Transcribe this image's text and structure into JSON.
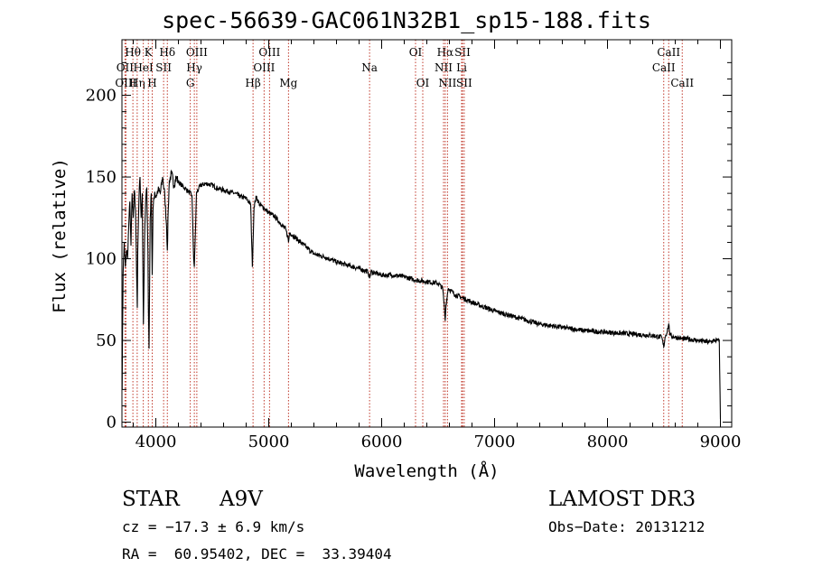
{
  "title": "spec-56639-GAC061N32B1_sp15-188.fits",
  "info": {
    "object_class": "STAR",
    "subclass": "A9V",
    "survey": "LAMOST DR3",
    "cz": "cz = −17.3 ± 6.9 km/s",
    "obs_date": "Obs−Date: 20131212",
    "coords": "RA =  60.95402, DEC =  33.39404"
  },
  "colors": {
    "line_marker": "#c0392b",
    "spectrum": "#000000",
    "axes": "#000000"
  },
  "chart_data": {
    "type": "line",
    "title": "spec-56639-GAC061N32B1_sp15-188.fits",
    "xlabel": "Wavelength (Å)",
    "ylabel": "Flux (relative)",
    "xlim": [
      3700,
      9100
    ],
    "ylim": [
      -3,
      234
    ],
    "xticks": [
      4000,
      5000,
      6000,
      7000,
      8000,
      9000
    ],
    "yticks": [
      0,
      50,
      100,
      150,
      200
    ],
    "x_tick_labels": [
      "4000",
      "5000",
      "6000",
      "7000",
      "8000",
      "9000"
    ],
    "y_tick_labels": [
      "0",
      "50",
      "100",
      "150",
      "200"
    ],
    "spectrum": {
      "x": [
        3700,
        3702,
        3705,
        3710,
        3720,
        3730,
        3740,
        3750,
        3760,
        3770,
        3780,
        3790,
        3800,
        3810,
        3820,
        3830,
        3836,
        3840,
        3850,
        3860,
        3870,
        3880,
        3890,
        3900,
        3910,
        3920,
        3930,
        3934,
        3940,
        3950,
        3960,
        3968,
        3975,
        3990,
        4000,
        4020,
        4040,
        4060,
        4080,
        4095,
        4102,
        4110,
        4120,
        4140,
        4160,
        4180,
        4200,
        4230,
        4260,
        4290,
        4320,
        4335,
        4341,
        4350,
        4360,
        4380,
        4400,
        4450,
        4500,
        4550,
        4600,
        4650,
        4700,
        4750,
        4800,
        4840,
        4855,
        4861,
        4870,
        4890,
        4920,
        4960,
        5000,
        5050,
        5100,
        5150,
        5170,
        5175,
        5185,
        5250,
        5300,
        5400,
        5500,
        5600,
        5700,
        5800,
        5880,
        5893,
        5905,
        5950,
        6000,
        6100,
        6200,
        6300,
        6400,
        6500,
        6540,
        6556,
        6563,
        6570,
        6590,
        6650,
        6750,
        6850,
        7000,
        7200,
        7400,
        7600,
        7800,
        8000,
        8200,
        8400,
        8480,
        8498,
        8510,
        8530,
        8542,
        8555,
        8600,
        8662,
        8700,
        8800,
        8900,
        8950,
        8980,
        8990,
        9000
      ],
      "y": [
        40,
        20,
        55,
        90,
        110,
        95,
        105,
        100,
        120,
        135,
        108,
        140,
        125,
        142,
        130,
        90,
        70,
        105,
        135,
        150,
        125,
        140,
        60,
        110,
        135,
        143,
        105,
        70,
        45,
        125,
        140,
        90,
        130,
        141,
        138,
        142,
        140,
        150,
        138,
        120,
        105,
        130,
        148,
        152,
        145,
        150,
        147,
        145,
        143,
        141,
        139,
        100,
        95,
        115,
        140,
        143,
        145,
        146,
        145,
        143,
        142,
        141,
        140,
        138,
        137,
        133,
        95,
        110,
        132,
        138,
        133,
        131,
        128,
        126,
        122,
        118,
        113,
        110,
        116,
        112,
        109,
        103,
        101,
        98,
        96,
        94,
        92,
        88,
        92,
        91,
        90,
        90,
        89,
        87,
        86,
        85,
        82,
        70,
        62,
        72,
        82,
        78,
        75,
        72,
        68,
        64,
        60,
        58,
        56,
        55,
        54,
        53,
        52,
        46,
        52,
        56,
        60,
        53,
        52,
        51,
        51,
        50,
        49,
        50,
        50,
        50,
        2
      ]
    },
    "line_markers": [
      {
        "label": "OII",
        "x": 3727,
        "row": 1
      },
      {
        "label": "OIII",
        "x": 3735,
        "row": 2
      },
      {
        "label": "Hθ",
        "x": 3797,
        "row": 0
      },
      {
        "label": "Hη",
        "x": 3835,
        "row": 2
      },
      {
        "label": "K",
        "x": 3934,
        "row": 0
      },
      {
        "label": "HeI",
        "x": 3889,
        "row": 1
      },
      {
        "label": "SII",
        "x": 4069,
        "row": 1
      },
      {
        "label": "H",
        "x": 3968,
        "row": 2
      },
      {
        "label": "Hδ",
        "x": 4102,
        "row": 0
      },
      {
        "label": "OIII",
        "x": 4363,
        "row": 0
      },
      {
        "label": "Hγ",
        "x": 4341,
        "row": 1
      },
      {
        "label": "G",
        "x": 4305,
        "row": 2
      },
      {
        "label": "Hβ",
        "x": 4861,
        "row": 2
      },
      {
        "label": "OIII",
        "x": 5007,
        "row": 0
      },
      {
        "label": "OIII",
        "x": 4959,
        "row": 1
      },
      {
        "label": "Mg",
        "x": 5175,
        "row": 2
      },
      {
        "label": "Na",
        "x": 5893,
        "row": 1
      },
      {
        "label": "OI",
        "x": 6300,
        "row": 0
      },
      {
        "label": "OI",
        "x": 6364,
        "row": 2
      },
      {
        "label": "Hα",
        "x": 6563,
        "row": 0
      },
      {
        "label": "SII",
        "x": 6716,
        "row": 0
      },
      {
        "label": "NII",
        "x": 6548,
        "row": 1
      },
      {
        "label": "Li",
        "x": 6708,
        "row": 1
      },
      {
        "label": "NII",
        "x": 6583,
        "row": 2
      },
      {
        "label": "SII",
        "x": 6731,
        "row": 2
      },
      {
        "label": "CaII",
        "x": 8542,
        "row": 0
      },
      {
        "label": "CaII",
        "x": 8498,
        "row": 1
      },
      {
        "label": "CaII",
        "x": 8662,
        "row": 2
      }
    ]
  }
}
